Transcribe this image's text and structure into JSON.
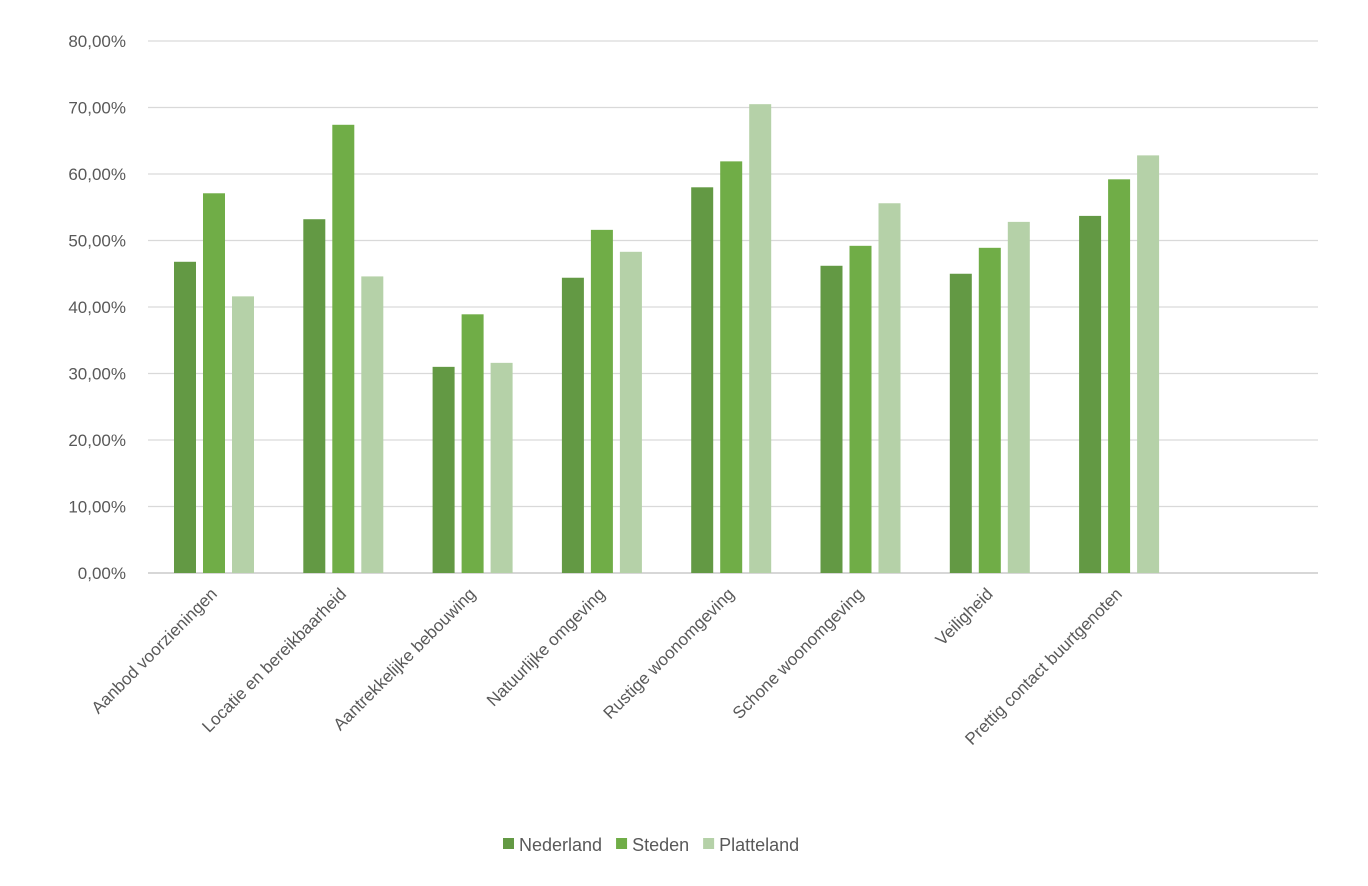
{
  "chart_data": {
    "type": "bar",
    "categories": [
      "Aanbod voorzieningen",
      "Locatie en bereikbaarheid",
      "Aantrekkelijke bebouwing",
      "Natuurlijke omgeving",
      "Rustige woonomgeving",
      "Schone woonomgeving",
      "Veiligheid",
      "Prettig contact buurtgenoten"
    ],
    "series": [
      {
        "name": "Nederland",
        "color": "#639944",
        "values": [
          46.8,
          53.2,
          31.0,
          44.4,
          58.0,
          46.2,
          45.0,
          53.7
        ]
      },
      {
        "name": "Steden",
        "color": "#70ad47",
        "values": [
          57.1,
          67.4,
          38.9,
          51.6,
          61.9,
          49.2,
          48.9,
          59.2
        ]
      },
      {
        "name": "Platteland",
        "color": "#b5d1a8",
        "values": [
          41.6,
          44.6,
          31.6,
          48.3,
          70.5,
          55.6,
          52.8,
          62.8
        ]
      }
    ],
    "yticks": [
      "0,00%",
      "10,00%",
      "20,00%",
      "30,00%",
      "40,00%",
      "50,00%",
      "60,00%",
      "70,00%",
      "80,00%"
    ],
    "ylim": [
      0,
      80
    ],
    "grid": true,
    "legend_position": "bottom",
    "title": "",
    "xlabel": "",
    "ylabel": ""
  }
}
